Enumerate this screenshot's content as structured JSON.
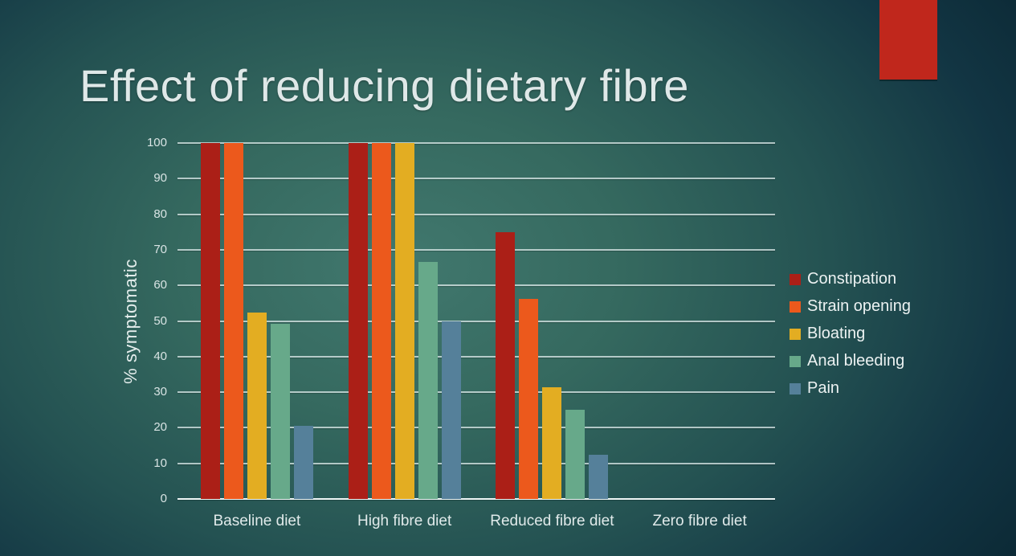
{
  "slide": {
    "title": "Effect of reducing dietary fibre",
    "accent_color": "#c0271c",
    "background_center_color": "#41786e",
    "background_edge_color": "#0c2a36"
  },
  "chart_data": {
    "type": "bar",
    "title": "",
    "xlabel": "",
    "ylabel": "% symptomatic",
    "ylim": [
      0,
      100
    ],
    "yticks": [
      0,
      10,
      20,
      30,
      40,
      50,
      60,
      70,
      80,
      90,
      100
    ],
    "grid": true,
    "legend_position": "right",
    "categories": [
      "Baseline diet",
      "High fibre diet",
      "Reduced fibre diet",
      "Zero fibre diet"
    ],
    "series": [
      {
        "name": "Constipation",
        "color": "#ab1f17",
        "values": [
          100,
          100,
          75,
          0
        ]
      },
      {
        "name": "Strain opening",
        "color": "#ec591c",
        "values": [
          100,
          100,
          56.3,
          0
        ]
      },
      {
        "name": "Bloating",
        "color": "#e3ad22",
        "values": [
          52.4,
          100,
          31.3,
          0
        ]
      },
      {
        "name": "Anal bleeding",
        "color": "#67a98a",
        "values": [
          49.2,
          66.7,
          25,
          0
        ]
      },
      {
        "name": "Pain",
        "color": "#55809a",
        "values": [
          20.6,
          50,
          12.5,
          0
        ]
      }
    ]
  }
}
